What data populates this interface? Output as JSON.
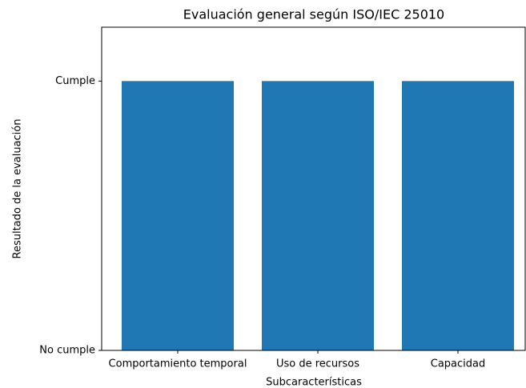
{
  "chart_data": {
    "type": "bar",
    "title": "Evaluación general según ISO/IEC 25010",
    "xlabel": "Subcaracterísticas",
    "ylabel": "Resultado de la evaluación",
    "categories": [
      "Comportamiento temporal",
      "Uso de recursos",
      "Capacidad"
    ],
    "values": [
      1,
      1,
      1
    ],
    "color": "#1f77b4",
    "ylim": [
      0,
      1.2
    ],
    "yticks": [
      {
        "value": 0,
        "label": "No cumple"
      },
      {
        "value": 1,
        "label": "Cumple"
      }
    ]
  }
}
